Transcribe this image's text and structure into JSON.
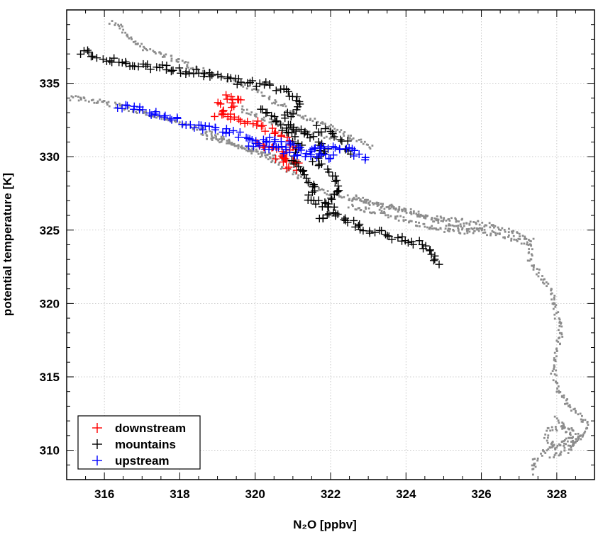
{
  "chart_data": {
    "type": "scatter",
    "xlabel": "N₂O [ppbv]",
    "ylabel": "potential temperature [K]",
    "xlim": [
      315,
      329
    ],
    "ylim": [
      308,
      340
    ],
    "x_ticks": [
      316,
      318,
      320,
      322,
      324,
      326,
      328
    ],
    "y_ticks": [
      310,
      315,
      320,
      325,
      330,
      335
    ],
    "grid": true,
    "legend_position": "bottom-left",
    "legend": [
      "downstream",
      "mountains",
      "upstream"
    ],
    "background_series": {
      "marker": "dot",
      "color": "#8c8c8c",
      "polylines": [
        [
          [
            316.2,
            339.2
          ],
          [
            316.4,
            338.9
          ],
          [
            316.6,
            338.2
          ],
          [
            317.0,
            337.4
          ],
          [
            317.6,
            336.9
          ],
          [
            318.4,
            336.1
          ],
          [
            319.2,
            335.3
          ],
          [
            320.0,
            334.6
          ],
          [
            320.6,
            333.6
          ],
          [
            321.2,
            332.8
          ],
          [
            322.0,
            332.0
          ],
          [
            322.6,
            331.2
          ],
          [
            323.1,
            330.6
          ]
        ],
        [
          [
            315.1,
            334.0
          ],
          [
            315.8,
            333.8
          ],
          [
            316.6,
            333.3
          ],
          [
            317.3,
            332.8
          ],
          [
            318.0,
            332.3
          ],
          [
            318.8,
            331.6
          ],
          [
            319.5,
            330.8
          ],
          [
            320.2,
            330.1
          ],
          [
            320.8,
            329.2
          ],
          [
            321.3,
            328.4
          ],
          [
            321.8,
            327.7
          ],
          [
            322.4,
            327.2
          ],
          [
            323.2,
            326.8
          ],
          [
            324.0,
            326.3
          ],
          [
            324.8,
            325.6
          ],
          [
            325.6,
            325.1
          ],
          [
            326.4,
            324.7
          ],
          [
            327.0,
            324.3
          ],
          [
            327.3,
            324.0
          ],
          [
            327.3,
            323.0
          ],
          [
            327.5,
            322.1
          ],
          [
            327.8,
            321.1
          ],
          [
            327.9,
            320.5
          ],
          [
            328.0,
            319.2
          ],
          [
            328.1,
            318.0
          ],
          [
            328.0,
            316.6
          ],
          [
            327.9,
            315.2
          ],
          [
            328.1,
            313.8
          ],
          [
            328.4,
            312.8
          ],
          [
            328.8,
            311.9
          ],
          [
            328.7,
            311.0
          ],
          [
            328.2,
            310.6
          ],
          [
            327.7,
            310.0
          ],
          [
            327.4,
            309.2
          ],
          [
            327.4,
            308.4
          ]
        ],
        [
          [
            319.6,
            333.3
          ],
          [
            320.2,
            332.6
          ],
          [
            320.9,
            332.0
          ],
          [
            321.6,
            331.6
          ],
          [
            322.2,
            331.2
          ]
        ],
        [
          [
            318.6,
            331.4
          ],
          [
            319.4,
            330.9
          ],
          [
            320.1,
            330.3
          ],
          [
            320.7,
            329.9
          ],
          [
            321.2,
            329.4
          ]
        ],
        [
          [
            322.6,
            327.3
          ],
          [
            323.3,
            326.7
          ],
          [
            324.0,
            326.3
          ],
          [
            324.7,
            325.9
          ],
          [
            325.5,
            325.6
          ],
          [
            326.3,
            325.3
          ],
          [
            326.9,
            324.8
          ],
          [
            327.4,
            324.2
          ]
        ],
        [
          [
            322.5,
            326.6
          ],
          [
            323.3,
            326.2
          ],
          [
            324.1,
            325.6
          ],
          [
            324.8,
            325.0
          ],
          [
            325.5,
            324.9
          ],
          [
            326.1,
            325.0
          ]
        ],
        [
          [
            328.0,
            312.2
          ],
          [
            328.1,
            311.8
          ],
          [
            328.3,
            311.2
          ],
          [
            328.5,
            310.5
          ],
          [
            328.0,
            310.2
          ],
          [
            327.7,
            310.8
          ],
          [
            327.8,
            311.4
          ],
          [
            328.2,
            311.6
          ],
          [
            328.6,
            311.0
          ],
          [
            328.3,
            309.9
          ],
          [
            327.8,
            309.6
          ]
        ]
      ]
    },
    "series": [
      {
        "name": "downstream",
        "color": "#ff0000",
        "marker": "plus",
        "polylines": [
          [
            [
              319.0,
              333.6
            ],
            [
              319.3,
              334.0
            ],
            [
              319.6,
              333.9
            ],
            [
              319.4,
              333.4
            ],
            [
              319.0,
              332.9
            ],
            [
              319.6,
              332.6
            ],
            [
              320.0,
              332.3
            ],
            [
              320.4,
              331.8
            ],
            [
              320.8,
              331.2
            ],
            [
              321.0,
              330.6
            ],
            [
              320.6,
              330.0
            ],
            [
              320.9,
              329.4
            ],
            [
              321.1,
              329.0
            ]
          ],
          [
            [
              320.0,
              331.0
            ],
            [
              320.4,
              330.6
            ],
            [
              320.8,
              330.1
            ],
            [
              321.2,
              329.6
            ]
          ]
        ]
      },
      {
        "name": "mountains",
        "color": "#000000",
        "marker": "plus",
        "polylines": [
          [
            [
              315.4,
              337.2
            ],
            [
              315.6,
              337.0
            ],
            [
              315.8,
              336.7
            ],
            [
              316.0,
              336.6
            ],
            [
              316.6,
              336.4
            ],
            [
              317.4,
              336.1
            ],
            [
              318.2,
              335.8
            ],
            [
              319.1,
              335.4
            ],
            [
              319.6,
              335.1
            ],
            [
              320.3,
              334.9
            ],
            [
              320.8,
              334.5
            ],
            [
              321.2,
              333.8
            ],
            [
              321.2,
              333.3
            ],
            [
              320.8,
              332.7
            ],
            [
              321.0,
              332.0
            ],
            [
              321.4,
              331.6
            ],
            [
              321.7,
              330.9
            ],
            [
              321.9,
              330.3
            ],
            [
              321.6,
              329.7
            ],
            [
              321.9,
              329.2
            ],
            [
              322.1,
              328.4
            ],
            [
              322.2,
              327.6
            ],
            [
              321.9,
              326.9
            ],
            [
              322.1,
              326.3
            ],
            [
              322.4,
              325.6
            ],
            [
              322.9,
              325.0
            ],
            [
              323.4,
              324.7
            ],
            [
              323.9,
              324.4
            ],
            [
              324.3,
              324.1
            ],
            [
              324.6,
              323.6
            ],
            [
              324.8,
              323.0
            ],
            [
              324.9,
              322.4
            ]
          ],
          [
            [
              320.1,
              333.3
            ],
            [
              320.5,
              332.4
            ],
            [
              320.9,
              331.6
            ],
            [
              321.2,
              330.6
            ],
            [
              321.0,
              329.6
            ],
            [
              321.3,
              328.6
            ],
            [
              321.6,
              327.9
            ],
            [
              321.4,
              327.2
            ],
            [
              321.8,
              326.8
            ],
            [
              322.0,
              326.0
            ],
            [
              321.6,
              325.6
            ]
          ],
          [
            [
              321.6,
              332.0
            ],
            [
              322.0,
              331.5
            ],
            [
              322.4,
              330.9
            ],
            [
              322.6,
              330.1
            ]
          ]
        ]
      },
      {
        "name": "upstream",
        "color": "#0000ff",
        "marker": "plus",
        "polylines": [
          [
            [
              316.4,
              333.5
            ],
            [
              317.0,
              333.2
            ],
            [
              317.5,
              332.9
            ],
            [
              318.0,
              332.4
            ],
            [
              318.6,
              332.0
            ],
            [
              319.2,
              331.7
            ],
            [
              319.8,
              331.4
            ],
            [
              320.4,
              331.1
            ],
            [
              320.9,
              330.8
            ],
            [
              321.3,
              330.6
            ],
            [
              321.8,
              330.5
            ],
            [
              322.3,
              330.6
            ],
            [
              322.7,
              330.2
            ],
            [
              323.0,
              329.6
            ]
          ],
          [
            [
              319.8,
              330.9
            ],
            [
              320.4,
              330.6
            ],
            [
              321.0,
              330.2
            ],
            [
              321.6,
              330.0
            ],
            [
              322.2,
              330.1
            ]
          ]
        ]
      }
    ]
  }
}
